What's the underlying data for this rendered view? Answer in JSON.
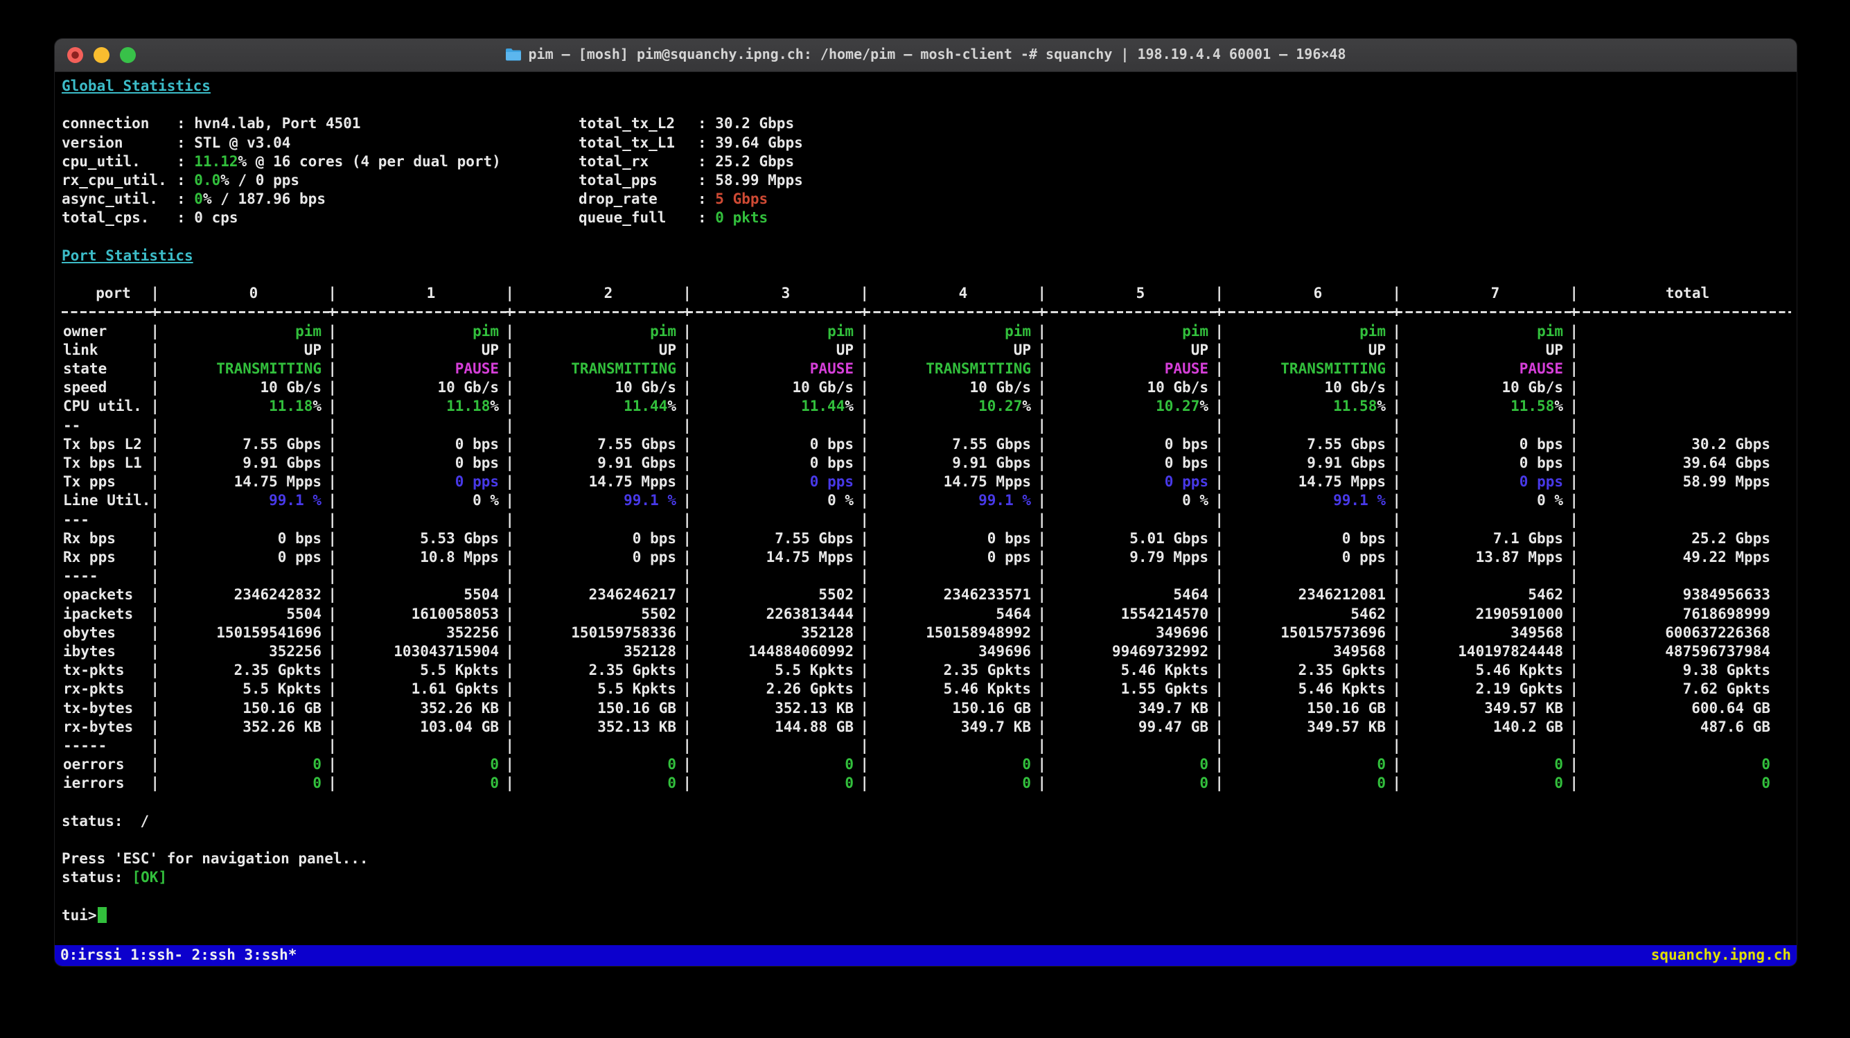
{
  "window": {
    "title": "pim — [mosh] pim@squanchy.ipng.ch: /home/pim — mosh-client -# squanchy | 198.19.4.4 60001 — 196×48"
  },
  "colors": {
    "green": "#32bf3c",
    "cyan": "#3cbcc8",
    "magenta": "#d63fd9",
    "blue": "#4839e8",
    "red": "#cf4a34",
    "tmux_bg": "#0c00cd",
    "tmux_host": "#e0e000"
  },
  "global_stats": {
    "heading": "Global Statistics",
    "left": [
      {
        "label": "connection",
        "value": [
          {
            "t": "hvn4.lab, Port 4501"
          }
        ]
      },
      {
        "label": "version",
        "value": [
          {
            "t": "STL @ v3.04"
          }
        ]
      },
      {
        "label": "cpu_util.",
        "value": [
          {
            "t": "11.12",
            "c": "green"
          },
          {
            "t": "% @ 16 cores (4 per dual port)"
          }
        ]
      },
      {
        "label": "rx_cpu_util.",
        "value": [
          {
            "t": "0.0",
            "c": "green"
          },
          {
            "t": "% / 0 pps"
          }
        ]
      },
      {
        "label": "async_util.",
        "value": [
          {
            "t": "0",
            "c": "green"
          },
          {
            "t": "% / 187.96 bps"
          }
        ]
      },
      {
        "label": "total_cps.",
        "value": [
          {
            "t": "0 cps"
          }
        ]
      }
    ],
    "right": [
      {
        "label": "total_tx_L2",
        "value": [
          {
            "t": "30.2 Gbps"
          }
        ]
      },
      {
        "label": "total_tx_L1",
        "value": [
          {
            "t": "39.64 Gbps"
          }
        ]
      },
      {
        "label": "total_rx",
        "value": [
          {
            "t": "25.2 Gbps"
          }
        ]
      },
      {
        "label": "total_pps",
        "value": [
          {
            "t": "58.99 Mpps"
          }
        ]
      },
      {
        "label": "drop_rate",
        "value": [
          {
            "t": "5 Gbps",
            "c": "red"
          }
        ]
      },
      {
        "label": "queue_full",
        "value": [
          {
            "t": "0 pkts",
            "c": "green"
          }
        ]
      }
    ]
  },
  "port_stats": {
    "heading": "Port Statistics",
    "columns": [
      "port",
      "0",
      "1",
      "2",
      "3",
      "4",
      "5",
      "6",
      "7",
      "total"
    ],
    "rows": [
      {
        "label": "owner",
        "c": "green",
        "cells": [
          "pim",
          "pim",
          "pim",
          "pim",
          "pim",
          "pim",
          "pim",
          "pim",
          ""
        ]
      },
      {
        "label": "link",
        "cells": [
          "UP",
          "UP",
          "UP",
          "UP",
          "UP",
          "UP",
          "UP",
          "UP",
          ""
        ]
      },
      {
        "label": "state",
        "cells": [
          {
            "t": "TRANSMITTING",
            "c": "green b"
          },
          {
            "t": "PAUSE",
            "c": "magenta b"
          },
          {
            "t": "TRANSMITTING",
            "c": "green b"
          },
          {
            "t": "PAUSE",
            "c": "magenta b"
          },
          {
            "t": "TRANSMITTING",
            "c": "green b"
          },
          {
            "t": "PAUSE",
            "c": "magenta b"
          },
          {
            "t": "TRANSMITTING",
            "c": "green b"
          },
          {
            "t": "PAUSE",
            "c": "magenta b"
          },
          ""
        ]
      },
      {
        "label": "speed",
        "cells": [
          "10 Gb/s",
          "10 Gb/s",
          "10 Gb/s",
          "10 Gb/s",
          "10 Gb/s",
          "10 Gb/s",
          "10 Gb/s",
          "10 Gb/s",
          ""
        ]
      },
      {
        "label": "CPU util.",
        "cells": [
          [
            {
              "t": "11.18",
              "c": "green"
            },
            {
              "t": "%"
            }
          ],
          [
            {
              "t": "11.18",
              "c": "green"
            },
            {
              "t": "%"
            }
          ],
          [
            {
              "t": "11.44",
              "c": "green"
            },
            {
              "t": "%"
            }
          ],
          [
            {
              "t": "11.44",
              "c": "green"
            },
            {
              "t": "%"
            }
          ],
          [
            {
              "t": "10.27",
              "c": "green"
            },
            {
              "t": "%"
            }
          ],
          [
            {
              "t": "10.27",
              "c": "green"
            },
            {
              "t": "%"
            }
          ],
          [
            {
              "t": "11.58",
              "c": "green"
            },
            {
              "t": "%"
            }
          ],
          [
            {
              "t": "11.58",
              "c": "green"
            },
            {
              "t": "%"
            }
          ],
          ""
        ]
      },
      {
        "label": "--",
        "cells": [
          "",
          "",
          "",
          "",
          "",
          "",
          "",
          "",
          ""
        ]
      },
      {
        "label": "Tx bps L2",
        "cells": [
          "7.55 Gbps",
          "0 bps",
          "7.55 Gbps",
          "0 bps",
          "7.55 Gbps",
          "0 bps",
          "7.55 Gbps",
          "0 bps",
          "30.2 Gbps"
        ]
      },
      {
        "label": "Tx bps L1",
        "cells": [
          "9.91 Gbps",
          "0 bps",
          "9.91 Gbps",
          "0 bps",
          "9.91 Gbps",
          "0 bps",
          "9.91 Gbps",
          "0 bps",
          "39.64 Gbps"
        ]
      },
      {
        "label": "Tx pps",
        "cells": [
          "14.75 Mpps",
          {
            "t": "0 pps",
            "c": "blue b"
          },
          "14.75 Mpps",
          {
            "t": "0 pps",
            "c": "blue b"
          },
          "14.75 Mpps",
          {
            "t": "0 pps",
            "c": "blue b"
          },
          "14.75 Mpps",
          {
            "t": "0 pps",
            "c": "blue b"
          },
          "58.99 Mpps"
        ]
      },
      {
        "label": "Line Util.",
        "cells": [
          {
            "t": "99.1 %",
            "c": "blue b"
          },
          {
            "t": "0 %",
            "c": "b"
          },
          {
            "t": "99.1 %",
            "c": "blue b"
          },
          {
            "t": "0 %",
            "c": "b"
          },
          {
            "t": "99.1 %",
            "c": "blue b"
          },
          {
            "t": "0 %",
            "c": "b"
          },
          {
            "t": "99.1 %",
            "c": "blue b"
          },
          {
            "t": "0 %",
            "c": "b"
          },
          ""
        ]
      },
      {
        "label": "---",
        "cells": [
          "",
          "",
          "",
          "",
          "",
          "",
          "",
          "",
          ""
        ]
      },
      {
        "label": "Rx bps",
        "cells": [
          "0 bps",
          "5.53 Gbps",
          "0 bps",
          "7.55 Gbps",
          "0 bps",
          "5.01 Gbps",
          "0 bps",
          "7.1 Gbps",
          "25.2 Gbps"
        ]
      },
      {
        "label": "Rx pps",
        "cells": [
          "0 pps",
          "10.8 Mpps",
          "0 pps",
          "14.75 Mpps",
          "0 pps",
          "9.79 Mpps",
          "0 pps",
          "13.87 Mpps",
          "49.22 Mpps"
        ]
      },
      {
        "label": "----",
        "cells": [
          "",
          "",
          "",
          "",
          "",
          "",
          "",
          "",
          ""
        ]
      },
      {
        "label": "opackets",
        "cells": [
          "2346242832",
          "5504",
          "2346246217",
          "5502",
          "2346233571",
          "5464",
          "2346212081",
          "5462",
          "9384956633"
        ]
      },
      {
        "label": "ipackets",
        "cells": [
          "5504",
          "1610058053",
          "5502",
          "2263813444",
          "5464",
          "1554214570",
          "5462",
          "2190591000",
          "7618698999"
        ]
      },
      {
        "label": "obytes",
        "cells": [
          "150159541696",
          "352256",
          "150159758336",
          "352128",
          "150158948992",
          "349696",
          "150157573696",
          "349568",
          "600637226368"
        ]
      },
      {
        "label": "ibytes",
        "cells": [
          "352256",
          "103043715904",
          "352128",
          "144884060992",
          "349696",
          "99469732992",
          "349568",
          "140197824448",
          "487596737984"
        ]
      },
      {
        "label": "tx-pkts",
        "cells": [
          "2.35 Gpkts",
          "5.5 Kpkts",
          "2.35 Gpkts",
          "5.5 Kpkts",
          "2.35 Gpkts",
          "5.46 Kpkts",
          "2.35 Gpkts",
          "5.46 Kpkts",
          "9.38 Gpkts"
        ]
      },
      {
        "label": "rx-pkts",
        "cells": [
          "5.5 Kpkts",
          "1.61 Gpkts",
          "5.5 Kpkts",
          "2.26 Gpkts",
          "5.46 Kpkts",
          "1.55 Gpkts",
          "5.46 Kpkts",
          "2.19 Gpkts",
          "7.62 Gpkts"
        ]
      },
      {
        "label": "tx-bytes",
        "cells": [
          "150.16 GB",
          "352.26 KB",
          "150.16 GB",
          "352.13 KB",
          "150.16 GB",
          "349.7 KB",
          "150.16 GB",
          "349.57 KB",
          "600.64 GB"
        ]
      },
      {
        "label": "rx-bytes",
        "cells": [
          "352.26 KB",
          "103.04 GB",
          "352.13 KB",
          "144.88 GB",
          "349.7 KB",
          "99.47 GB",
          "349.57 KB",
          "140.2 GB",
          "487.6 GB"
        ]
      },
      {
        "label": "-----",
        "cells": [
          "",
          "",
          "",
          "",
          "",
          "",
          "",
          "",
          ""
        ]
      },
      {
        "label": "oerrors",
        "cells": [
          {
            "t": "0",
            "c": "green"
          },
          {
            "t": "0",
            "c": "green"
          },
          {
            "t": "0",
            "c": "green"
          },
          {
            "t": "0",
            "c": "green"
          },
          {
            "t": "0",
            "c": "green"
          },
          {
            "t": "0",
            "c": "green"
          },
          {
            "t": "0",
            "c": "green"
          },
          {
            "t": "0",
            "c": "green"
          },
          {
            "t": "0",
            "c": "green"
          }
        ]
      },
      {
        "label": "ierrors",
        "cells": [
          {
            "t": "0",
            "c": "green"
          },
          {
            "t": "0",
            "c": "green"
          },
          {
            "t": "0",
            "c": "green"
          },
          {
            "t": "0",
            "c": "green"
          },
          {
            "t": "0",
            "c": "green"
          },
          {
            "t": "0",
            "c": "green"
          },
          {
            "t": "0",
            "c": "green"
          },
          {
            "t": "0",
            "c": "green"
          },
          {
            "t": "0",
            "c": "green"
          }
        ]
      }
    ]
  },
  "footer": {
    "status_label": "status:",
    "spinner": "/",
    "hint": "Press 'ESC' for navigation panel...",
    "status_value": "[OK]",
    "prompt": "tui>"
  },
  "tmux": {
    "left": "0:irssi  1:ssh- 2:ssh  3:ssh*",
    "right": "squanchy.ipng.ch"
  }
}
